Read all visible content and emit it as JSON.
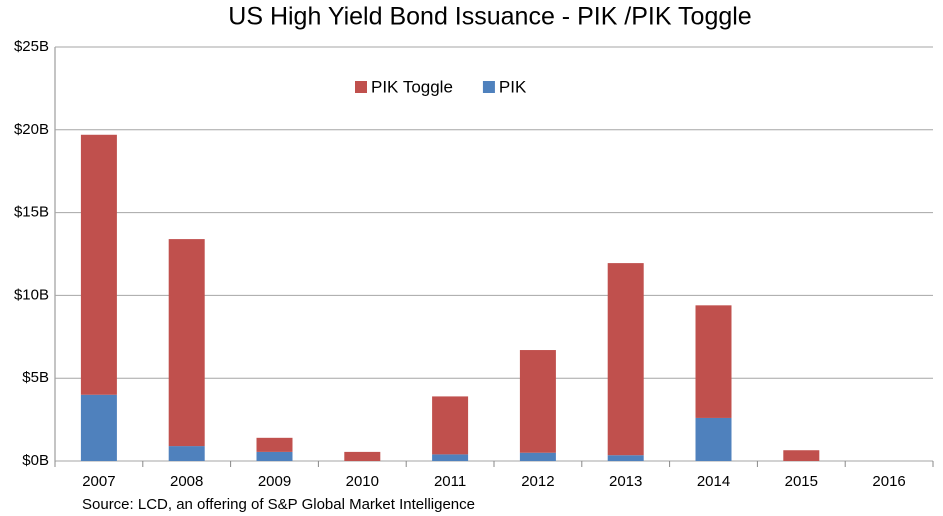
{
  "chart_data": {
    "type": "stacked-bar",
    "title": "US High Yield Bond Issuance - PIK /PIK Toggle",
    "categories": [
      "2007",
      "2008",
      "2009",
      "2010",
      "2011",
      "2012",
      "2013",
      "2014",
      "2015",
      "2016"
    ],
    "series": [
      {
        "name": "PIK",
        "color": "#4f81bd",
        "values": [
          4.0,
          0.9,
          0.55,
          0,
          0.4,
          0.5,
          0.35,
          2.6,
          0,
          0
        ]
      },
      {
        "name": "PIK Toggle",
        "color": "#c0504d",
        "values": [
          15.7,
          12.5,
          0.85,
          0.55,
          3.5,
          6.2,
          11.6,
          6.8,
          0.65,
          0
        ]
      }
    ],
    "ylim": [
      0,
      25
    ],
    "yticks": [
      {
        "value": 0,
        "label": "$0B"
      },
      {
        "value": 5,
        "label": "$5B"
      },
      {
        "value": 10,
        "label": "$10B"
      },
      {
        "value": 15,
        "label": "$15B"
      },
      {
        "value": 20,
        "label": "$20B"
      },
      {
        "value": 25,
        "label": "$25B"
      }
    ],
    "grid": true,
    "legend": "top",
    "source": "Source: LCD, an offering of S&P Global Market Intelligence"
  }
}
